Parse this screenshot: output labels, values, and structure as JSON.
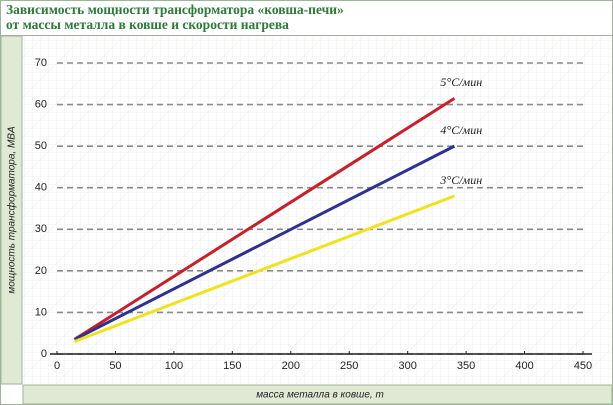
{
  "chart_data": {
    "type": "line",
    "title": "Зависимость мощности трансформатора «ковша-печи»",
    "subtitle": "от массы металла в ковше и скорости нагрева",
    "x_label": "масса металла в ковше, т",
    "y_label": "мощность трансформатора, MBA",
    "x": [
      15,
      340
    ],
    "series": [
      {
        "name": "5°C/мин",
        "color": "#c8202a",
        "values": [
          3.5,
          61.5
        ]
      },
      {
        "name": "4°C/мин",
        "color": "#2e3192",
        "values": [
          3.5,
          50
        ]
      },
      {
        "name": "3°C/мин",
        "color": "#f2e21e",
        "values": [
          3,
          38
        ]
      }
    ],
    "xlim": [
      0,
      450
    ],
    "xticks": [
      0,
      50,
      100,
      150,
      200,
      250,
      300,
      350,
      400,
      450
    ],
    "ylim": [
      0,
      70
    ],
    "yticks": [
      0,
      10,
      20,
      30,
      40,
      50,
      60,
      70
    ],
    "grid": true
  }
}
